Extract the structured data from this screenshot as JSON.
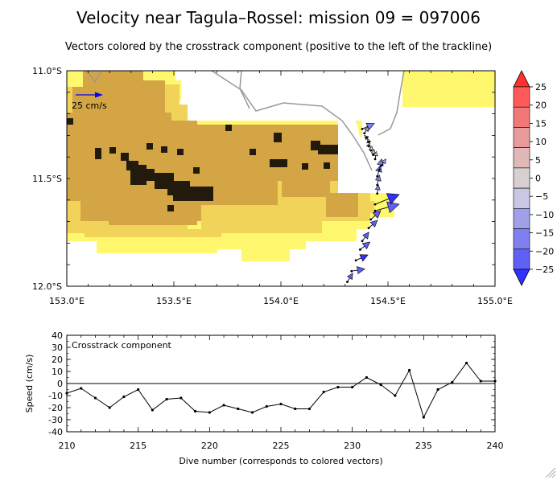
{
  "title": "Velocity near Tagula–Rossel: mission 09 = 097006",
  "subtitle": "Vectors colored by the crosstrack component (positive to the left of the trackline)",
  "colors": {
    "bathy_shallow": "#fff86e",
    "bathy_mid": "#f2d35a",
    "bathy_deep": "#d4a545",
    "bathy_deepest": "#231a0e",
    "track": "#999999",
    "scale_arrow": "#0000ff"
  },
  "chart_data": [
    {
      "type": "map",
      "name": "velocity-map",
      "x_ticks": [
        "153.0°E",
        "153.5°E",
        "154.0°E",
        "154.5°E",
        "155.0°E"
      ],
      "y_ticks": [
        "11.0°S",
        "11.5°S",
        "12.0°S"
      ],
      "xlim": [
        153.0,
        155.0
      ],
      "ylim": [
        -12.0,
        -11.0
      ],
      "scale_label": "25 cm/s",
      "scale_value_cm_s": 25,
      "colorbar": {
        "labels": [
          "25",
          "20",
          "15",
          "10",
          "5",
          "0",
          "−5",
          "−10",
          "−15",
          "−20",
          "−25"
        ],
        "values": [
          25,
          20,
          15,
          10,
          5,
          0,
          -5,
          -10,
          -15,
          -20,
          -25
        ],
        "colors": [
          "#ff3030",
          "#ff5a5a",
          "#f07878",
          "#e89a9a",
          "#e0b8b8",
          "#d8d0d0",
          "#c8c8e6",
          "#a0a0e8",
          "#8080f0",
          "#6060f4",
          "#3030ff"
        ]
      },
      "vectors": [
        {
          "lon": 154.31,
          "lat": -11.98,
          "u": 5.0,
          "v": 8.0,
          "cross": -20
        },
        {
          "lon": 154.33,
          "lat": -11.93,
          "u": 12.0,
          "v": 2.0,
          "cross": -22
        },
        {
          "lon": 154.35,
          "lat": -11.88,
          "u": 11.0,
          "v": 5.0,
          "cross": -23
        },
        {
          "lon": 154.37,
          "lat": -11.83,
          "u": 9.0,
          "v": 7.0,
          "cross": -21
        },
        {
          "lon": 154.38,
          "lat": -11.79,
          "u": 6.0,
          "v": 8.0,
          "cross": -20
        },
        {
          "lon": 154.41,
          "lat": -11.73,
          "u": 8.0,
          "v": 7.0,
          "cross": -22
        },
        {
          "lon": 154.42,
          "lat": -11.69,
          "u": 9.0,
          "v": 8.0,
          "cross": -18
        },
        {
          "lon": 154.44,
          "lat": -11.65,
          "u": 22.0,
          "v": 6.0,
          "cross": -22
        },
        {
          "lon": 154.44,
          "lat": -11.62,
          "u": 22.0,
          "v": 9.0,
          "cross": -24
        },
        {
          "lon": 154.45,
          "lat": -11.57,
          "u": 1.0,
          "v": 8.0,
          "cross": -15
        },
        {
          "lon": 154.45,
          "lat": -11.53,
          "u": 2.0,
          "v": 9.0,
          "cross": -17
        },
        {
          "lon": 154.45,
          "lat": -11.49,
          "u": 3.0,
          "v": 10.0,
          "cross": -14
        },
        {
          "lon": 154.46,
          "lat": -11.46,
          "u": 2.0,
          "v": 10.0,
          "cross": -16
        },
        {
          "lon": 154.47,
          "lat": -11.44,
          "u": 4.0,
          "v": 6.0,
          "cross": -12
        },
        {
          "lon": 154.44,
          "lat": -11.41,
          "u": 1.0,
          "v": 7.0,
          "cross": -6
        },
        {
          "lon": 154.43,
          "lat": -11.39,
          "u": 1.0,
          "v": 5.0,
          "cross": -3
        },
        {
          "lon": 154.42,
          "lat": -11.37,
          "u": 1.0,
          "v": 4.0,
          "cross": 2
        },
        {
          "lon": 154.41,
          "lat": -11.35,
          "u": 1.0,
          "v": 3.0,
          "cross": 3
        },
        {
          "lon": 154.41,
          "lat": -11.33,
          "u": -1.0,
          "v": 3.0,
          "cross": 1
        },
        {
          "lon": 154.4,
          "lat": -11.31,
          "u": -2.0,
          "v": 2.0,
          "cross": -2
        },
        {
          "lon": 154.39,
          "lat": -11.29,
          "u": 4.0,
          "v": 6.0,
          "cross": -8
        },
        {
          "lon": 154.38,
          "lat": -11.27,
          "u": 11.0,
          "v": 5.0,
          "cross": -14
        }
      ]
    },
    {
      "type": "line",
      "name": "crosstrack-speed",
      "annotation": "Crosstrack component",
      "xlabel": "Dive number (corresponds to colored vectors)",
      "ylabel": "Speed (cm/s)",
      "xlim": [
        210,
        240
      ],
      "ylim": [
        -40,
        40
      ],
      "x_ticks": [
        210,
        215,
        220,
        225,
        230,
        235,
        240
      ],
      "y_ticks": [
        40,
        30,
        20,
        10,
        0,
        -10,
        -20,
        -30,
        -40
      ],
      "x": [
        210,
        211,
        212,
        213,
        214,
        215,
        216,
        217,
        218,
        219,
        220,
        221,
        222,
        223,
        224,
        225,
        226,
        227,
        228,
        229,
        230,
        231,
        232,
        233,
        234,
        235,
        236,
        237,
        238,
        239,
        240
      ],
      "y": [
        -8,
        -4,
        -12,
        -20,
        -11,
        -5,
        -22,
        -13,
        -12,
        -23,
        -24,
        -18,
        -21,
        -24,
        -19,
        -17,
        -21,
        -21,
        -7,
        -3,
        -3,
        5,
        -1,
        -10,
        11,
        -28,
        -5,
        1,
        17,
        2,
        2
      ]
    }
  ]
}
